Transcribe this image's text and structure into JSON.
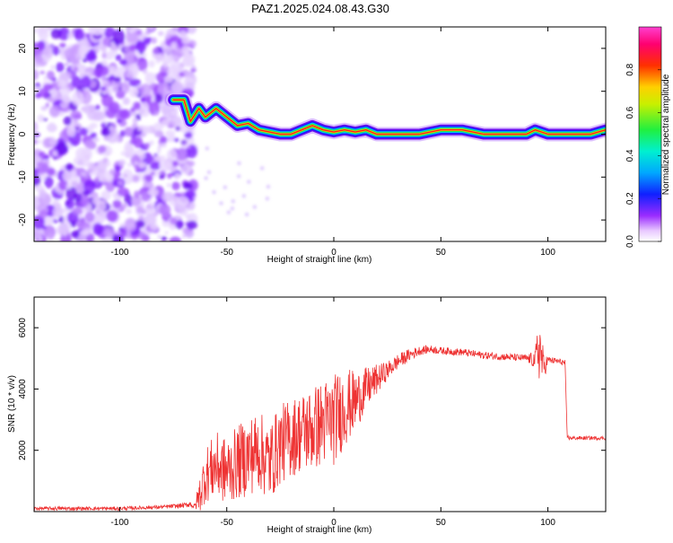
{
  "title": "PAZ1.2025.024.08.43.G30",
  "chart_data": [
    {
      "type": "heatmap",
      "xlabel": "Height of straight line (km)",
      "ylabel": "Frequency (Hz)",
      "xlim": [
        -140,
        127
      ],
      "ylim": [
        -25,
        25
      ],
      "x_ticks": [
        -100,
        -50,
        0,
        50,
        100
      ],
      "y_ticks": [
        -20,
        -10,
        0,
        10,
        20
      ],
      "colorbar": {
        "label": "Normalized spectral amplitude",
        "ticks": [
          "0.0",
          "0.2",
          "0.4",
          "0.6",
          "0.8"
        ],
        "range": [
          0,
          1
        ],
        "colormap": "rainbow: white→violet→blue→cyan→green→yellow→red→magenta"
      },
      "ridge": {
        "description": "dominant frequency line",
        "x": [
          -75,
          -70,
          -67,
          -63,
          -60,
          -55,
          -50,
          -45,
          -40,
          -35,
          -30,
          -25,
          -20,
          -15,
          -10,
          -5,
          0,
          5,
          10,
          15,
          20,
          30,
          40,
          50,
          60,
          70,
          80,
          90,
          94,
          100,
          110,
          120,
          127
        ],
        "y": [
          8,
          8,
          3,
          6,
          4,
          6,
          4,
          2,
          2.5,
          1,
          0.5,
          0,
          0,
          1,
          2,
          1,
          0.5,
          1,
          0.5,
          1,
          0,
          0,
          0,
          1,
          1,
          0,
          0,
          0,
          1,
          0,
          0,
          0,
          1
        ]
      },
      "noise_region_x": [
        -140,
        -67
      ]
    },
    {
      "type": "line",
      "xlabel": "Height of straight line (km)",
      "ylabel": "SNR (10 * v/v)",
      "xlim": [
        -140,
        127
      ],
      "ylim": [
        0,
        7000
      ],
      "x_ticks": [
        -100,
        -50,
        0,
        50,
        100
      ],
      "y_ticks": [
        2000,
        4000,
        6000
      ],
      "line_color": "#ee3333",
      "series": [
        {
          "x": [
            -140,
            -120,
            -100,
            -80,
            -70,
            -67,
            -65,
            -62,
            -60,
            -55,
            -50,
            -45,
            -40,
            -35,
            -30,
            -25,
            -20,
            -15,
            -10,
            -5,
            0,
            5,
            10,
            15,
            20,
            25,
            30,
            35,
            40,
            45,
            50,
            60,
            70,
            80,
            90,
            94,
            96,
            98,
            100,
            105,
            108,
            109,
            110,
            115,
            120,
            127
          ],
          "y": [
            100,
            100,
            100,
            150,
            200,
            250,
            150,
            700,
            1200,
            1500,
            1300,
            1600,
            1800,
            2000,
            1600,
            2200,
            2400,
            2600,
            2700,
            2900,
            3000,
            3400,
            3600,
            4000,
            4300,
            4600,
            4900,
            5100,
            5250,
            5300,
            5250,
            5200,
            5100,
            5050,
            5000,
            4950,
            5400,
            4700,
            4950,
            4900,
            4850,
            2450,
            2400,
            2400,
            2400,
            2400
          ],
          "noise_amplitude": [
            60,
            60,
            60,
            60,
            80,
            100,
            100,
            700,
            900,
            1100,
            1100,
            1200,
            1300,
            1300,
            1300,
            1300,
            1300,
            1300,
            1400,
            1400,
            1500,
            1300,
            1000,
            700,
            500,
            300,
            250,
            200,
            150,
            130,
            120,
            120,
            120,
            120,
            120,
            300,
            1200,
            500,
            120,
            100,
            100,
            60,
            60,
            60,
            60,
            60
          ]
        }
      ]
    }
  ]
}
